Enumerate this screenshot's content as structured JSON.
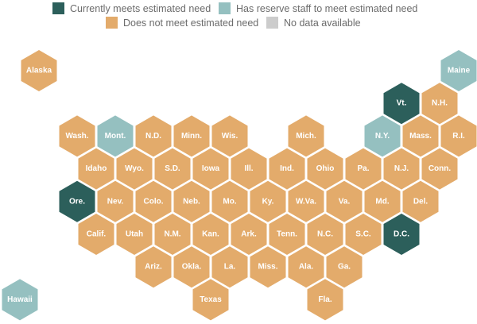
{
  "colors": {
    "meets": "#2c5f5b",
    "reserve": "#95c0c0",
    "not_meet": "#e3ab6b",
    "no_data": "#cccccc"
  },
  "legend": [
    {
      "key": "meets",
      "label": "Currently meets estimated need"
    },
    {
      "key": "reserve",
      "label": "Has reserve staff to meet estimated need"
    },
    {
      "key": "not_meet",
      "label": "Does not meet estimated need"
    },
    {
      "key": "no_data",
      "label": "No data available"
    }
  ],
  "states": [
    {
      "label": "Alaska",
      "status": "not_meet"
    },
    {
      "label": "Maine",
      "status": "reserve"
    },
    {
      "label": "Vt.",
      "status": "meets"
    },
    {
      "label": "N.H.",
      "status": "not_meet"
    },
    {
      "label": "Wash.",
      "status": "not_meet"
    },
    {
      "label": "Mont.",
      "status": "reserve"
    },
    {
      "label": "N.D.",
      "status": "not_meet"
    },
    {
      "label": "Minn.",
      "status": "not_meet"
    },
    {
      "label": "Wis.",
      "status": "not_meet"
    },
    {
      "label": "Mich.",
      "status": "not_meet"
    },
    {
      "label": "N.Y.",
      "status": "reserve"
    },
    {
      "label": "Mass.",
      "status": "not_meet"
    },
    {
      "label": "R.I.",
      "status": "not_meet"
    },
    {
      "label": "Idaho",
      "status": "not_meet"
    },
    {
      "label": "Wyo.",
      "status": "not_meet"
    },
    {
      "label": "S.D.",
      "status": "not_meet"
    },
    {
      "label": "Iowa",
      "status": "not_meet"
    },
    {
      "label": "Ill.",
      "status": "not_meet"
    },
    {
      "label": "Ind.",
      "status": "not_meet"
    },
    {
      "label": "Ohio",
      "status": "not_meet"
    },
    {
      "label": "Pa.",
      "status": "not_meet"
    },
    {
      "label": "N.J.",
      "status": "not_meet"
    },
    {
      "label": "Conn.",
      "status": "not_meet"
    },
    {
      "label": "Ore.",
      "status": "meets"
    },
    {
      "label": "Nev.",
      "status": "not_meet"
    },
    {
      "label": "Colo.",
      "status": "not_meet"
    },
    {
      "label": "Neb.",
      "status": "not_meet"
    },
    {
      "label": "Mo.",
      "status": "not_meet"
    },
    {
      "label": "Ky.",
      "status": "not_meet"
    },
    {
      "label": "W.Va.",
      "status": "not_meet"
    },
    {
      "label": "Va.",
      "status": "not_meet"
    },
    {
      "label": "Md.",
      "status": "not_meet"
    },
    {
      "label": "Del.",
      "status": "not_meet"
    },
    {
      "label": "Calif.",
      "status": "not_meet"
    },
    {
      "label": "Utah",
      "status": "not_meet"
    },
    {
      "label": "N.M.",
      "status": "not_meet"
    },
    {
      "label": "Kan.",
      "status": "not_meet"
    },
    {
      "label": "Ark.",
      "status": "not_meet"
    },
    {
      "label": "Tenn.",
      "status": "not_meet"
    },
    {
      "label": "N.C.",
      "status": "not_meet"
    },
    {
      "label": "S.C.",
      "status": "not_meet"
    },
    {
      "label": "D.C.",
      "status": "meets"
    },
    {
      "label": "Ariz.",
      "status": "not_meet"
    },
    {
      "label": "Okla.",
      "status": "not_meet"
    },
    {
      "label": "La.",
      "status": "not_meet"
    },
    {
      "label": "Miss.",
      "status": "not_meet"
    },
    {
      "label": "Ala.",
      "status": "not_meet"
    },
    {
      "label": "Ga.",
      "status": "not_meet"
    },
    {
      "label": "Texas",
      "status": "not_meet"
    },
    {
      "label": "Fla.",
      "status": "not_meet"
    },
    {
      "label": "Hawaii",
      "status": "reserve"
    }
  ]
}
